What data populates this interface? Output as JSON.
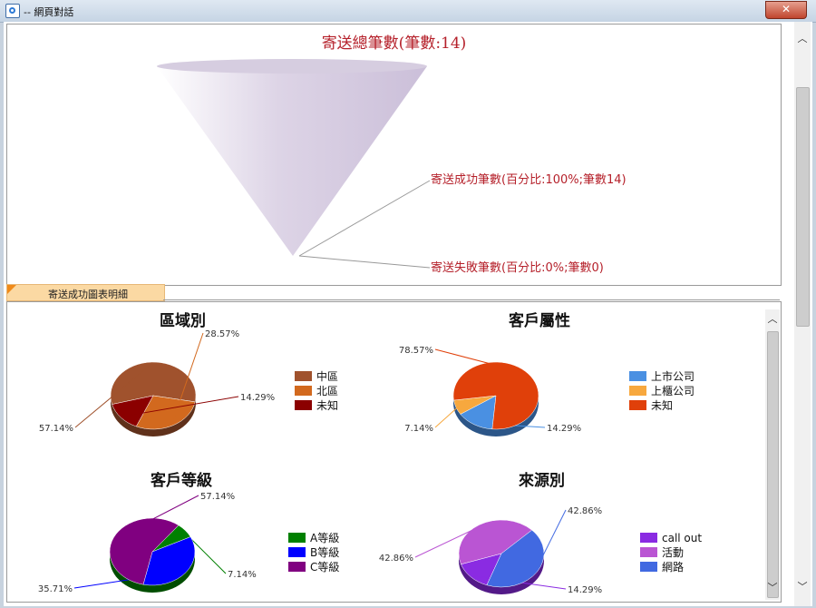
{
  "window": {
    "title": "-- 網頁對話"
  },
  "funnel": {
    "title": "寄送總筆數(筆數:14)",
    "labels": [
      "寄送成功筆數(百分比:100%;筆數14)",
      "寄送失敗筆數(百分比:0%;筆數0)"
    ]
  },
  "tab": {
    "label": "寄送成功圖表明細"
  },
  "chart_data": [
    {
      "type": "pie",
      "title": "區域別",
      "categories": [
        "中區",
        "北區",
        "未知"
      ],
      "values": [
        57.14,
        28.57,
        14.29
      ],
      "labels": [
        "57.14%",
        "28.57%",
        "14.29%"
      ],
      "colors": [
        "#a0522d",
        "#d2691e",
        "#8b0000"
      ],
      "legend": "right"
    },
    {
      "type": "pie",
      "title": "客戶屬性",
      "categories": [
        "上市公司",
        "上櫃公司",
        "未知"
      ],
      "values": [
        14.29,
        7.14,
        78.57
      ],
      "labels": [
        "14.29%",
        "7.14%",
        "78.57%"
      ],
      "colors": [
        "#4a90e2",
        "#f7a83e",
        "#e0400a"
      ],
      "legend": "right"
    },
    {
      "type": "pie",
      "title": "客戶等級",
      "categories": [
        "A等級",
        "B等級",
        "C等級"
      ],
      "values": [
        7.14,
        35.71,
        57.14
      ],
      "labels": [
        "7.14%",
        "35.71%",
        "57.14%"
      ],
      "colors": [
        "#008000",
        "#0000ff",
        "#800080"
      ],
      "legend": "right"
    },
    {
      "type": "pie",
      "title": "來源別",
      "categories": [
        "call out",
        "活動",
        "網路"
      ],
      "values": [
        14.29,
        42.86,
        42.86
      ],
      "labels": [
        "14.29%",
        "42.86%",
        "42.86%"
      ],
      "colors": [
        "#8a2be2",
        "#ba55d3",
        "#4169e1"
      ],
      "legend": "right"
    }
  ]
}
